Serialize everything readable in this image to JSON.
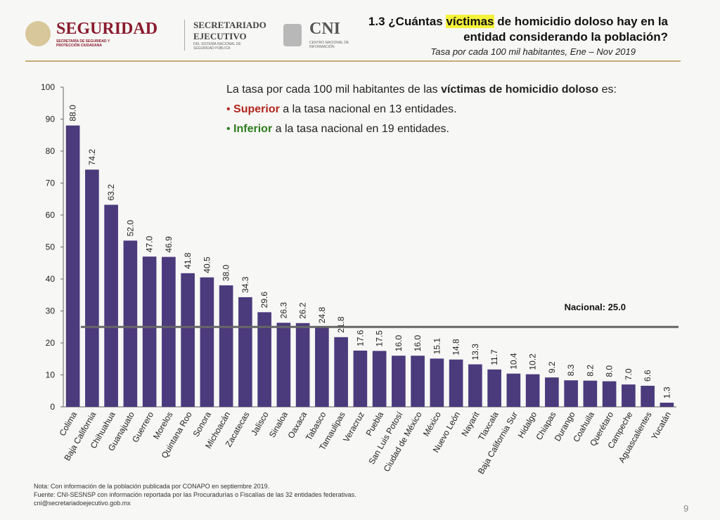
{
  "header": {
    "brand": "SEGURIDAD",
    "brand_sub": "SECRETARÍA DE SEGURIDAD Y PROTECCIÓN CIUDADANA",
    "sec": "SECRETARIADO EJECUTIVO",
    "sec_sub": "DEL SISTEMA NACIONAL DE SEGURIDAD PÚBLICA",
    "cni": "CNI",
    "cni_sub": "CENTRO NACIONAL DE INFORMACIÓN"
  },
  "chart_data": {
    "type": "bar",
    "title_parts": [
      "1.3 ¿Cuántas ",
      "víctimas",
      " de homicidio doloso hay en la entidad considerando la población?"
    ],
    "subtitle": "Tasa por cada 100 mil habitantes, Ene – Nov 2019",
    "categories": [
      "Colima",
      "Baja California",
      "Chihuahua",
      "Guanajuato",
      "Guerrero",
      "Morelos",
      "Quintana Roo",
      "Sonora",
      "Michoacán",
      "Zacatecas",
      "Jalisco",
      "Sinaloa",
      "Oaxaca",
      "Tabasco",
      "Tamaulipas",
      "Veracruz",
      "Puebla",
      "San Luis Potosí",
      "Ciudad de México",
      "México",
      "Nuevo León",
      "Nayarit",
      "Tlaxcala",
      "Baja California Sur",
      "Hidalgo",
      "Chiapas",
      "Durango",
      "Coahuila",
      "Querétaro",
      "Campeche",
      "Aguascalientes",
      "Yucatán"
    ],
    "values": [
      88.0,
      74.2,
      63.2,
      52.0,
      47.0,
      46.9,
      41.8,
      40.5,
      38.0,
      34.3,
      29.6,
      26.3,
      26.2,
      24.8,
      21.8,
      17.6,
      17.5,
      16.0,
      16.0,
      15.1,
      14.8,
      13.3,
      11.7,
      10.4,
      10.2,
      9.2,
      8.3,
      8.2,
      8.0,
      7.0,
      6.6,
      1.3
    ],
    "value_labels": [
      "88.0",
      "74.2",
      "63.2",
      "52.0",
      "47.0",
      "46.9",
      "41.8",
      "40.5",
      "38.0",
      "34.3",
      "29.6",
      "26.3",
      "26.2",
      "24.8",
      "21.8",
      "17.6",
      "17.5",
      "16.0",
      "16.0",
      "15.1",
      "14.8",
      "13.3",
      "11.7",
      "10.4",
      "10.2",
      "9.2",
      "8.3",
      "8.2",
      "8.0",
      "7.0",
      "6.6",
      "1.3"
    ],
    "color": "#4b3a7c",
    "ylim": [
      0,
      100
    ],
    "yticks": [
      0,
      10,
      20,
      30,
      40,
      50,
      60,
      70,
      80,
      90,
      100
    ],
    "reference": {
      "value": 25,
      "label": "Nacional: 25.0"
    },
    "annotation": {
      "intro": "La tasa por cada 100 mil habitantes de las ",
      "intro_bold": "víctimas de homicidio doloso",
      "intro_end": " es:",
      "bullets": [
        {
          "bold": "Superior",
          "text": " a la tasa nacional en 13 entidades.",
          "color": "#b3261e"
        },
        {
          "bold": "Inferior",
          "text": " a la tasa nacional en 19 entidades.",
          "color": "#2e7d1e"
        }
      ]
    }
  },
  "notes": [
    "Nota: Con información de la población publicada por CONAPO en septiembre 2019.",
    "Fuente: CNI-SESNSP con información reportada por las Procuradurías o Fiscalías de las 32 entidades federativas.",
    "cni@secretariadoejecutivo.gob.mx"
  ],
  "page_number": "9"
}
